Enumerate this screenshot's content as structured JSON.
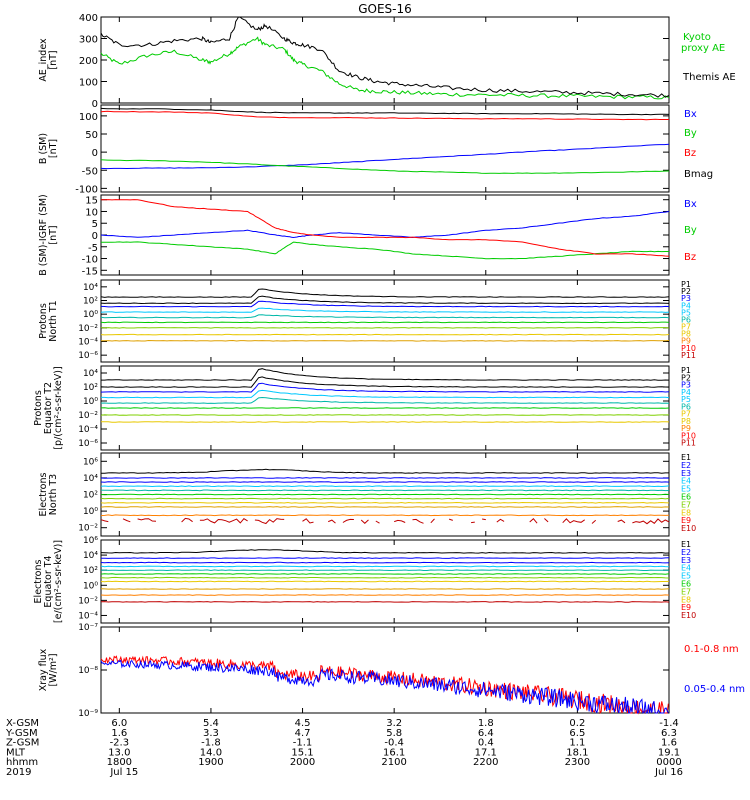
{
  "title": "GOES-16",
  "colors": {
    "black": "#000000",
    "red": "#ff0000",
    "green": "#00cc00",
    "blue": "#0000ff",
    "cyan": "#00c8ff",
    "teal": "#00b8a8",
    "lime": "#7fd000",
    "yellow": "#e8c800",
    "gold": "#e0a000",
    "orange": "#ff8000",
    "darkred": "#c00000"
  },
  "chart_data": [
    {
      "type": "line",
      "id": "ae",
      "ylabel": "AE_index\n[nT]",
      "ylim": [
        0,
        400
      ],
      "yticks": [
        "0",
        "100",
        "200",
        "300",
        "400"
      ],
      "x_hours": [
        17.8,
        18.0,
        18.3,
        18.6,
        18.9,
        19.0,
        19.2,
        19.3,
        19.5,
        19.6,
        19.8,
        19.9,
        20.0,
        20.2,
        20.4,
        20.6,
        20.8,
        21.0,
        21.3,
        21.6,
        22.0,
        22.4,
        22.8,
        23.2,
        23.6,
        24.0
      ],
      "series": [
        {
          "name": "Kyoto\nproxy AE",
          "color": "#00cc00",
          "values": [
            230,
            180,
            220,
            240,
            200,
            190,
            230,
            260,
            300,
            270,
            250,
            200,
            180,
            150,
            90,
            60,
            55,
            50,
            45,
            40,
            38,
            35,
            33,
            30,
            28,
            25
          ]
        },
        {
          "name": "Themis AE",
          "color": "#000000",
          "values": [
            320,
            270,
            270,
            290,
            300,
            280,
            300,
            400,
            340,
            360,
            300,
            280,
            270,
            250,
            150,
            120,
            100,
            90,
            80,
            70,
            60,
            55,
            50,
            45,
            40,
            35
          ]
        }
      ]
    },
    {
      "type": "line",
      "id": "bsm",
      "ylabel": "B (SM)\n[nT]",
      "ylim": [
        -110,
        130
      ],
      "yticks": [
        "-100",
        "-50",
        "0",
        "50",
        "100"
      ],
      "x_hours": [
        17.8,
        18.5,
        19.0,
        19.5,
        20.0,
        20.5,
        21.0,
        21.5,
        22.0,
        22.5,
        23.0,
        23.5,
        24.0
      ],
      "series": [
        {
          "name": "Bx",
          "color": "#0000ff",
          "values": [
            -45,
            -44,
            -43,
            -40,
            -35,
            -28,
            -20,
            -13,
            -6,
            2,
            8,
            15,
            22
          ]
        },
        {
          "name": "By",
          "color": "#00cc00",
          "values": [
            -22,
            -24,
            -28,
            -34,
            -40,
            -46,
            -52,
            -55,
            -58,
            -58,
            -57,
            -55,
            -52
          ]
        },
        {
          "name": "Bz",
          "color": "#ff0000",
          "values": [
            112,
            111,
            108,
            97,
            95,
            95,
            94,
            93,
            92,
            92,
            91,
            90,
            90
          ]
        },
        {
          "name": "Bmag",
          "color": "#000000",
          "values": [
            120,
            119,
            116,
            110,
            108,
            108,
            108,
            107,
            106,
            106,
            105,
            104,
            104
          ]
        }
      ]
    },
    {
      "type": "line",
      "id": "bigrf",
      "ylabel": "B (SM)-IGRF (SM)\n[nT]",
      "ylim": [
        -17,
        17
      ],
      "yticks": [
        "-15",
        "-10",
        "-5",
        "0",
        "5",
        "10",
        "15"
      ],
      "x_hours": [
        17.8,
        18.2,
        18.6,
        19.0,
        19.4,
        19.7,
        19.9,
        20.1,
        20.4,
        20.8,
        21.2,
        21.6,
        22.0,
        22.4,
        22.8,
        23.2,
        23.6,
        24.0
      ],
      "series": [
        {
          "name": "Bx",
          "color": "#0000ff",
          "values": [
            0,
            -1,
            0,
            1,
            2,
            0,
            -1,
            0,
            1,
            0,
            -1,
            0,
            2,
            3,
            5,
            7,
            8,
            10
          ]
        },
        {
          "name": "By",
          "color": "#00cc00",
          "values": [
            -3,
            -3,
            -4,
            -5,
            -6,
            -8,
            -3,
            -4,
            -5,
            -6,
            -8,
            -9,
            -10,
            -10,
            -9,
            -8,
            -7,
            -7
          ]
        },
        {
          "name": "Bz",
          "color": "#ff0000",
          "values": [
            15,
            15,
            12,
            11,
            10,
            3,
            1,
            0,
            -1,
            -1,
            -1,
            -2,
            -2,
            -3,
            -6,
            -8,
            -8,
            -9
          ]
        }
      ]
    },
    {
      "type": "line",
      "id": "pt1",
      "ylabel": "Protons\nNorth T1",
      "log": true,
      "ylim": [
        -7,
        5
      ],
      "yticks": [
        "10⁴",
        "10²",
        "10⁰",
        "10⁻²",
        "10⁻⁴",
        "10⁻⁶"
      ],
      "ytick_exps": [
        4,
        2,
        0,
        -2,
        -4,
        -6
      ],
      "legend": [
        "P1",
        "P2",
        "P3",
        "P4",
        "P5",
        "P6",
        "P7",
        "P8",
        "P9",
        "P10",
        "P11"
      ],
      "legend_colors": [
        "#000000",
        "#000000",
        "#0000ff",
        "#00c8ff",
        "#00c8ff",
        "#00b8a8",
        "#e8c800",
        "#e8c800",
        "#ff8000",
        "#ff0000",
        "#c00000"
      ],
      "base_levels": [
        2.5,
        1.6,
        1.1,
        0.3,
        -0.5,
        -1.2,
        -2.0,
        -3.0,
        -3.9
      ],
      "base_colors": [
        "#000000",
        "#000000",
        "#0000ff",
        "#00c8ff",
        "#00b8a8",
        "#00cc00",
        "#7fd000",
        "#e8c800",
        "#e0a000"
      ],
      "event_hour": 19.45,
      "event_peak": 1.5
    },
    {
      "type": "line",
      "id": "pt2",
      "ylabel": "Protons\nEquator T2\n[p/(cm²-s-sr-keV)]",
      "log": true,
      "ylim": [
        -7,
        5
      ],
      "yticks": [
        "10⁴",
        "10²",
        "10⁰",
        "10⁻²",
        "10⁻⁴",
        "10⁻⁶"
      ],
      "ytick_exps": [
        4,
        2,
        0,
        -2,
        -4,
        -6
      ],
      "legend": [
        "P1",
        "P2",
        "P3",
        "P4",
        "P5",
        "P6",
        "P7",
        "P8",
        "P9",
        "P10",
        "P11"
      ],
      "legend_colors": [
        "#000000",
        "#000000",
        "#0000ff",
        "#00c8ff",
        "#00c8ff",
        "#00b8a8",
        "#e8c800",
        "#e8c800",
        "#ff8000",
        "#ff0000",
        "#c00000"
      ],
      "base_levels": [
        3.0,
        2.0,
        1.3,
        0.5,
        -0.3,
        -1.0,
        -2.0,
        -3.0
      ],
      "base_colors": [
        "#000000",
        "#000000",
        "#0000ff",
        "#00c8ff",
        "#00b8a8",
        "#00cc00",
        "#7fd000",
        "#e8c800"
      ],
      "event_hour": 19.45,
      "event_peak": 2.0
    },
    {
      "type": "line",
      "id": "et3",
      "ylabel": "Electrons\nNorth T3",
      "log": true,
      "ylim": [
        -3,
        7
      ],
      "yticks": [
        "10⁶",
        "10⁴",
        "10²",
        "10⁰",
        "10⁻²"
      ],
      "ytick_exps": [
        6,
        4,
        2,
        0,
        -2
      ],
      "legend": [
        "E1",
        "E2",
        "E3",
        "E4",
        "E5",
        "E6",
        "E7",
        "E8",
        "E9",
        "E10"
      ],
      "legend_colors": [
        "#000000",
        "#0000ff",
        "#0000ff",
        "#00c8ff",
        "#00c8ff",
        "#00cc00",
        "#7fd000",
        "#e8c800",
        "#ff0000",
        "#c00000"
      ],
      "base_levels": [
        4.6,
        4.0,
        3.5,
        3.0,
        2.5,
        2.0,
        1.5,
        1.0,
        0.5,
        -0.5,
        -1.2
      ],
      "base_colors": [
        "#000000",
        "#0000ff",
        "#0000ff",
        "#00c8ff",
        "#00b8a8",
        "#00cc00",
        "#7fd000",
        "#e8c800",
        "#e0a000",
        "#ff8000",
        "#c00000"
      ]
    },
    {
      "type": "line",
      "id": "et4",
      "ylabel": "Electrons\nEquator T4\n[e/(cm²-s-sr-keV)]",
      "log": true,
      "ylim": [
        -5,
        6
      ],
      "yticks": [
        "10⁶",
        "10⁴",
        "10²",
        "10⁰",
        "10⁻²",
        "10⁻⁴"
      ],
      "ytick_exps": [
        6,
        4,
        2,
        0,
        -2,
        -4
      ],
      "legend": [
        "E1",
        "E2",
        "E3",
        "E4",
        "E5",
        "E6",
        "E7",
        "E8",
        "E9",
        "E10"
      ],
      "legend_colors": [
        "#000000",
        "#0000ff",
        "#0000ff",
        "#00c8ff",
        "#00c8ff",
        "#00cc00",
        "#7fd000",
        "#e8c800",
        "#ff0000",
        "#c00000"
      ],
      "base_levels": [
        4.3,
        3.6,
        3.0,
        2.5,
        2.0,
        1.5,
        1.0,
        0.5,
        -0.5,
        -1.3,
        -2.2
      ],
      "base_colors": [
        "#000000",
        "#0000ff",
        "#0000ff",
        "#00c8ff",
        "#00b8a8",
        "#00cc00",
        "#7fd000",
        "#e8c800",
        "#e0a000",
        "#ff8000",
        "#c00000"
      ]
    },
    {
      "type": "line",
      "id": "xray",
      "ylabel": "Xray flux\n[W/m²]",
      "log": true,
      "ylim": [
        -9,
        -7
      ],
      "yticks": [
        "10⁻⁷",
        "10⁻⁸",
        "10⁻⁹"
      ],
      "ytick_exps": [
        -7,
        -8,
        -9
      ],
      "series": [
        {
          "name": "0.1-0.8 nm",
          "color": "#ff0000",
          "start": -7.75,
          "end": -9.0
        },
        {
          "name": "0.05-0.4 nm",
          "color": "#0000ff",
          "start": -7.85,
          "end": -9.0
        }
      ]
    }
  ],
  "xaxis": {
    "rows": [
      {
        "label": "X-GSM",
        "values": [
          "6.0",
          "5.4",
          "4.5",
          "3.2",
          "1.8",
          "0.2",
          "-1.4"
        ]
      },
      {
        "label": "Y-GSM",
        "values": [
          "1.6",
          "3.3",
          "4.7",
          "5.8",
          "6.4",
          "6.5",
          "6.3"
        ]
      },
      {
        "label": "Z-GSM",
        "values": [
          "-2.3",
          "-1.8",
          "-1.1",
          "-0.4",
          "0.4",
          "1.1",
          "1.6"
        ]
      },
      {
        "label": "MLT",
        "values": [
          "13.0",
          "14.0",
          "15.1",
          "16.1",
          "17.1",
          "18.1",
          "19.1"
        ]
      },
      {
        "label": "hhmm",
        "values": [
          "1800",
          "1900",
          "2000",
          "2100",
          "2200",
          "2300",
          "0000"
        ]
      },
      {
        "label": "2019",
        "values": [
          "Jul 15",
          "",
          "",
          "",
          "",
          "",
          "Jul 16"
        ]
      }
    ],
    "tick_hours": [
      18,
      19,
      20,
      21,
      22,
      23,
      24
    ],
    "range_hours": [
      17.8,
      24.0
    ]
  }
}
